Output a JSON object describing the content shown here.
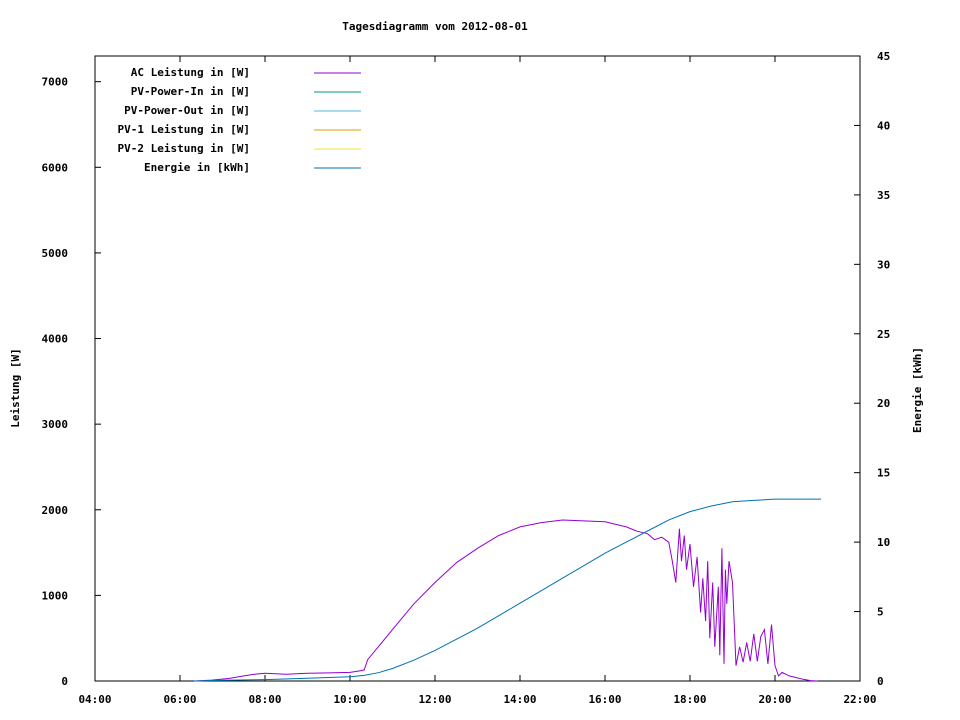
{
  "chart_data": {
    "type": "line",
    "title": "Tagesdiagramm vom 2012-08-01",
    "xlabel": "",
    "ylabel": "Leistung [W]",
    "y2label": "Energie [kWh]",
    "x_ticks": [
      "04:00",
      "06:00",
      "08:00",
      "10:00",
      "12:00",
      "14:00",
      "16:00",
      "18:00",
      "20:00",
      "22:00"
    ],
    "xlim_hours": [
      4,
      22
    ],
    "ylim": [
      0,
      7300
    ],
    "y_ticks": [
      0,
      1000,
      2000,
      3000,
      4000,
      5000,
      6000,
      7000
    ],
    "y2lim": [
      0,
      45
    ],
    "y2_ticks": [
      0,
      5,
      10,
      15,
      20,
      25,
      30,
      35,
      40,
      45
    ],
    "grid": false,
    "legend_position": "top-left",
    "series": [
      {
        "name": "AC Leistung in [W]",
        "axis": "left",
        "color": "#9400d3",
        "x": [
          "06:20",
          "06:45",
          "07:10",
          "07:30",
          "07:45",
          "08:00",
          "08:30",
          "09:00",
          "09:30",
          "10:00",
          "10:15",
          "10:20",
          "10:25",
          "10:40",
          "11:00",
          "11:30",
          "12:00",
          "12:30",
          "13:00",
          "13:30",
          "14:00",
          "14:30",
          "15:00",
          "15:30",
          "16:00",
          "16:30",
          "16:45",
          "17:00",
          "17:10",
          "17:20",
          "17:30",
          "17:35",
          "17:40",
          "17:45",
          "17:48",
          "17:52",
          "17:55",
          "18:00",
          "18:05",
          "18:10",
          "18:15",
          "18:18",
          "18:22",
          "18:25",
          "18:28",
          "18:32",
          "18:35",
          "18:40",
          "18:42",
          "18:45",
          "18:48",
          "18:50",
          "18:52",
          "18:55",
          "19:00",
          "19:05",
          "19:10",
          "19:15",
          "19:20",
          "19:25",
          "19:30",
          "19:35",
          "19:40",
          "19:45",
          "19:50",
          "19:55",
          "20:00",
          "20:05",
          "20:10",
          "20:20",
          "20:30",
          "20:40",
          "20:50",
          "21:00"
        ],
        "values": [
          0,
          10,
          30,
          60,
          80,
          90,
          80,
          90,
          95,
          100,
          120,
          130,
          250,
          400,
          600,
          900,
          1150,
          1380,
          1550,
          1700,
          1800,
          1850,
          1880,
          1870,
          1860,
          1800,
          1750,
          1720,
          1650,
          1680,
          1620,
          1400,
          1150,
          1780,
          1400,
          1700,
          1300,
          1600,
          1100,
          1450,
          800,
          1200,
          700,
          1400,
          500,
          1150,
          400,
          1100,
          300,
          1550,
          200,
          1300,
          900,
          1400,
          1150,
          180,
          400,
          220,
          450,
          230,
          550,
          230,
          520,
          600,
          200,
          660,
          180,
          60,
          100,
          60,
          40,
          20,
          5,
          0
        ]
      },
      {
        "name": "PV-Power-In in [W]",
        "axis": "left",
        "color": "#009e73",
        "x": [],
        "values": []
      },
      {
        "name": "PV-Power-Out in [W]",
        "axis": "left",
        "color": "#56b4e9",
        "x": [],
        "values": []
      },
      {
        "name": "PV-1 Leistung in [W]",
        "axis": "left",
        "color": "#e69f00",
        "x": [],
        "values": []
      },
      {
        "name": "PV-2 Leistung in [W]",
        "axis": "left",
        "color": "#f0e442",
        "x": [],
        "values": []
      },
      {
        "name": "Energie in [kWh]",
        "axis": "right",
        "color": "#0072b2",
        "x": [
          "06:20",
          "07:00",
          "08:00",
          "09:00",
          "10:00",
          "10:20",
          "10:40",
          "11:00",
          "11:30",
          "12:00",
          "12:30",
          "13:00",
          "13:30",
          "14:00",
          "14:30",
          "15:00",
          "15:30",
          "16:00",
          "16:30",
          "17:00",
          "17:30",
          "18:00",
          "18:30",
          "19:00",
          "19:30",
          "20:00",
          "20:30",
          "21:00",
          "21:05"
        ],
        "values": [
          0,
          0.05,
          0.1,
          0.2,
          0.3,
          0.4,
          0.6,
          0.9,
          1.5,
          2.2,
          3.0,
          3.8,
          4.7,
          5.6,
          6.5,
          7.4,
          8.3,
          9.2,
          10.0,
          10.8,
          11.6,
          12.2,
          12.6,
          12.9,
          13.0,
          13.1,
          13.1,
          13.1,
          13.1
        ]
      }
    ]
  }
}
